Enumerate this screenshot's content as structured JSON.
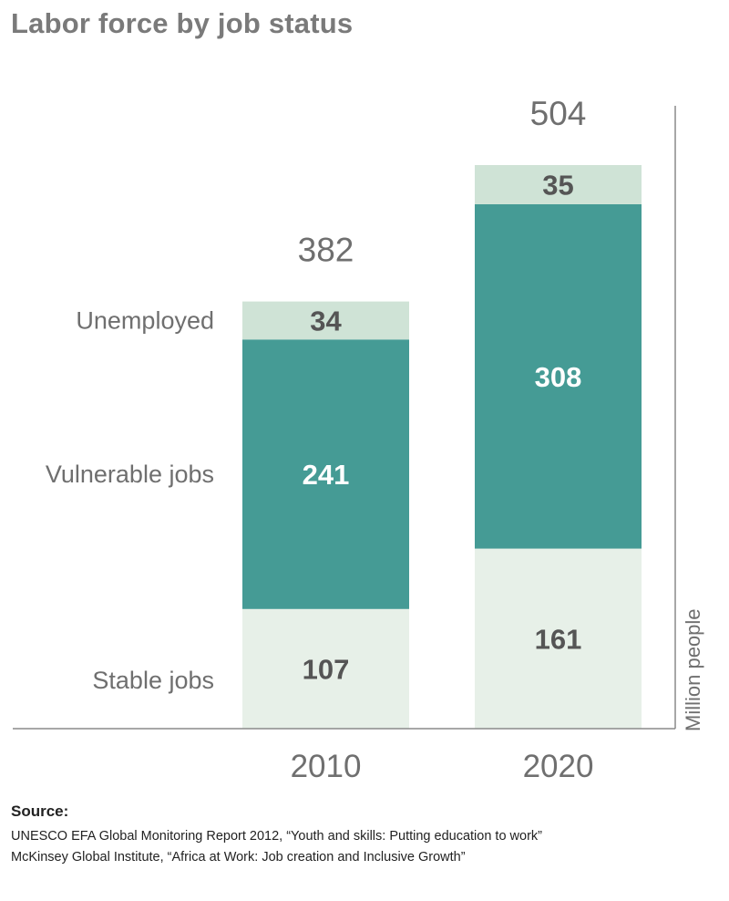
{
  "colors": {
    "stable": "#e7f0e8",
    "vulnerable": "#459b95",
    "unemployed": "#cfe3d6",
    "text_gray": "#6f6f6f",
    "text_dark": "#555555",
    "on_dark": "#ffffff",
    "axis": "#8a8a8a"
  },
  "source": {
    "label": "Source:",
    "lines": [
      "UNESCO EFA Global Monitoring Report 2012, “Youth and skills: Putting education to work”",
      "McKinsey Global Institute, “Africa at Work: Job creation and Inclusive Growth”"
    ]
  },
  "chart_data": {
    "type": "bar",
    "stacked": true,
    "title": "Labor force by job status",
    "ylabel": "Million people",
    "categories": [
      "2010",
      "2020"
    ],
    "series": [
      {
        "name": "Stable jobs",
        "values": [
          107,
          161
        ]
      },
      {
        "name": "Vulnerable jobs",
        "values": [
          241,
          308
        ]
      },
      {
        "name": "Unemployed",
        "values": [
          34,
          35
        ]
      }
    ],
    "totals": [
      382,
      504
    ],
    "ylim": [
      0,
      504
    ],
    "legend": "left",
    "grid": false
  }
}
